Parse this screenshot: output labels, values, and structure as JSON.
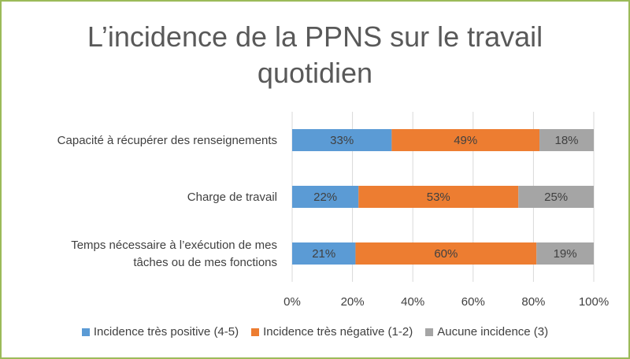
{
  "chart_data": {
    "type": "bar",
    "orientation": "horizontal",
    "stacked": true,
    "title": "L’incidence de la PPNS sur le travail quotidien",
    "title_lines": [
      "L’incidence de la PPNS sur le travail",
      "quotidien"
    ],
    "categories": [
      [
        "Capacité à récupérer des renseignements"
      ],
      [
        "Charge de travail"
      ],
      [
        "Temps nécessaire à l’exécution de mes",
        "tâches ou de mes fonctions"
      ]
    ],
    "series": [
      {
        "name": "Incidence très positive (4-5)",
        "color": "#5b9bd5",
        "values": [
          33,
          22,
          21
        ],
        "labels": [
          "33%",
          "22%",
          "21%"
        ]
      },
      {
        "name": "Incidence très négative (1-2)",
        "color": "#ed7d31",
        "values": [
          49,
          53,
          60
        ],
        "labels": [
          "49%",
          "53%",
          "60%"
        ]
      },
      {
        "name": "Aucune incidence (3)",
        "color": "#a5a5a5",
        "values": [
          18,
          25,
          19
        ],
        "labels": [
          "18%",
          "25%",
          "19%"
        ]
      }
    ],
    "xlim": [
      0,
      100
    ],
    "x_ticks": [
      0,
      20,
      40,
      60,
      80,
      100
    ],
    "x_tick_labels": [
      "0%",
      "20%",
      "40%",
      "60%",
      "80%",
      "100%"
    ],
    "grid": true,
    "legend_position": "bottom"
  }
}
